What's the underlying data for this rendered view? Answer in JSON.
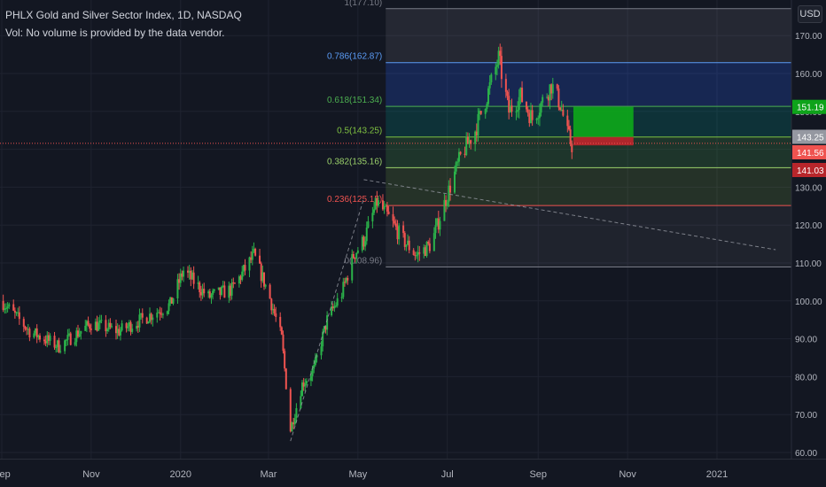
{
  "header": {
    "title": "PHLX Gold and Silver Sector Index, 1D, NASDAQ",
    "volume_note": "Vol: No volume is provided by the data vendor."
  },
  "currency_label": "USD",
  "colors": {
    "background": "#131722",
    "up": "#26a69a",
    "up_candle": "#2bb34a",
    "down": "#ef5350",
    "fib_blue": "#5b9cf6",
    "fib_green": "#4caf50",
    "fib_red": "#ef5350",
    "target_green": "#0ea31a",
    "stop_red": "#b7262b"
  },
  "chart_data": {
    "type": "candlestick",
    "title": "PHLX Gold and Silver Sector Index, 1D, NASDAQ",
    "xlabel": "",
    "ylabel": "USD",
    "ylim": [
      58,
      177
    ],
    "y_ticks": [
      60,
      70,
      80,
      90,
      100,
      110,
      120,
      130,
      140,
      150,
      160,
      170
    ],
    "y_tick_labels": [
      "60.00",
      "70.00",
      "80.00",
      "90.00",
      "100.00",
      "110.00",
      "120.00",
      "130.00",
      "140.00",
      "150.00",
      "160.00",
      "170.00"
    ],
    "x_ticks": [
      "Sep",
      "Nov",
      "2020",
      "Mar",
      "May",
      "Jul",
      "Sep",
      "Nov",
      "2021"
    ],
    "x_tick_dates": [
      "2019-09-01",
      "2019-11-01",
      "2020-01-01",
      "2020-03-01",
      "2020-05-01",
      "2020-07-01",
      "2020-09-01",
      "2020-11-01",
      "2021-01-01"
    ],
    "grid": true,
    "price_path": [
      [
        "2019-09-01",
        100
      ],
      [
        "2019-09-20",
        92
      ],
      [
        "2019-10-10",
        88
      ],
      [
        "2019-11-01",
        94
      ],
      [
        "2019-11-20",
        92
      ],
      [
        "2019-12-10",
        96
      ],
      [
        "2019-12-25",
        99
      ],
      [
        "2020-01-03",
        108
      ],
      [
        "2020-01-20",
        101
      ],
      [
        "2020-02-05",
        103
      ],
      [
        "2020-02-20",
        112
      ],
      [
        "2020-03-01",
        102
      ],
      [
        "2020-03-10",
        90
      ],
      [
        "2020-03-16",
        66
      ],
      [
        "2020-03-24",
        78
      ],
      [
        "2020-04-01",
        82
      ],
      [
        "2020-04-10",
        95
      ],
      [
        "2020-04-20",
        102
      ],
      [
        "2020-04-28",
        112
      ],
      [
        "2020-05-05",
        116
      ],
      [
        "2020-05-14",
        126
      ],
      [
        "2020-05-22",
        122
      ],
      [
        "2020-06-01",
        116
      ],
      [
        "2020-06-10",
        112
      ],
      [
        "2020-06-20",
        115
      ],
      [
        "2020-07-01",
        128
      ],
      [
        "2020-07-10",
        138
      ],
      [
        "2020-07-20",
        145
      ],
      [
        "2020-07-28",
        154
      ],
      [
        "2020-08-05",
        164
      ],
      [
        "2020-08-12",
        150
      ],
      [
        "2020-08-20",
        154
      ],
      [
        "2020-08-28",
        148
      ],
      [
        "2020-09-03",
        152
      ],
      [
        "2020-09-10",
        157
      ],
      [
        "2020-09-16",
        152
      ],
      [
        "2020-09-21",
        144
      ],
      [
        "2020-09-24",
        141
      ]
    ],
    "fibonacci": [
      {
        "level": "1",
        "price": 177.1,
        "color": "#787b86",
        "label": "1(177.10)"
      },
      {
        "level": "0.786",
        "price": 162.87,
        "color": "#5b9cf6",
        "label": "0.786(162.87)"
      },
      {
        "level": "0.618",
        "price": 151.34,
        "color": "#4caf50",
        "label": "0.618(151.34)"
      },
      {
        "level": "0.5",
        "price": 143.25,
        "color": "#7fc241",
        "label": "0.5(143.25)"
      },
      {
        "level": "0.382",
        "price": 135.16,
        "color": "#9ad06a",
        "label": "0.382(135.16)"
      },
      {
        "level": "0.236",
        "price": 125.15,
        "color": "#ef5350",
        "label": "0.236(125.15)"
      },
      {
        "level": "0",
        "price": 108.96,
        "color": "#787b86",
        "label": "0(108.96)"
      }
    ],
    "fib_start_date": "2020-05-20",
    "position": {
      "start_date": "2020-09-25",
      "end_date": "2020-11-05",
      "entry": 143.25,
      "target": 151.19,
      "stop": 141.03
    },
    "price_tags": [
      {
        "value": 151.19,
        "label": "151.19",
        "bg": "#0ea31a",
        "fg": "#ffffff"
      },
      {
        "value": 143.25,
        "label": "143.25",
        "bg": "#9598a1",
        "fg": "#ffffff"
      },
      {
        "value": 141.56,
        "label": "141.56",
        "bg": "#ef5350",
        "fg": "#ffffff"
      },
      {
        "value": 141.03,
        "label": "141.03",
        "bg": "#b7262b",
        "fg": "#ffffff"
      }
    ],
    "current_price": 141.56,
    "trendlines": [
      {
        "style": "dashed",
        "from": [
          "2020-05-05",
          132.0
        ],
        "to": [
          "2021-02-10",
          113.5
        ]
      },
      {
        "style": "dashed",
        "from": [
          "2020-03-16",
          63.0
        ],
        "to": [
          "2020-05-05",
          127.0
        ]
      }
    ]
  }
}
